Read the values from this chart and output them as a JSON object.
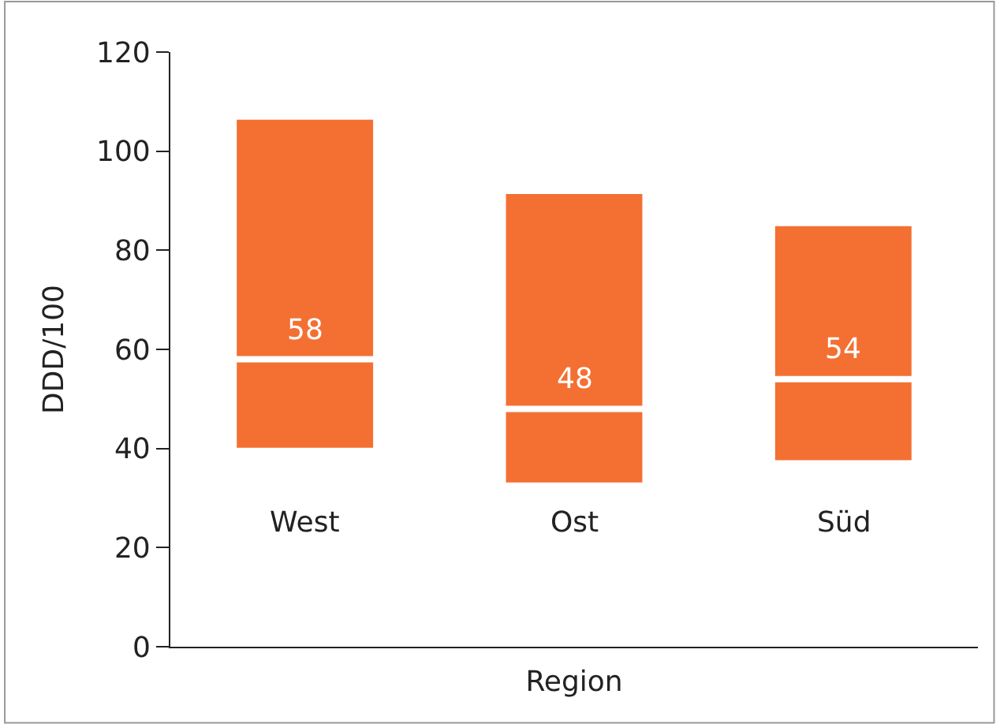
{
  "chart_data": {
    "type": "box",
    "xlabel": "Region",
    "ylabel": "DDD/100",
    "categories": [
      "West",
      "Ost",
      "Süd"
    ],
    "boxes": [
      {
        "low": 39.5,
        "q1": 39.5,
        "median": 58,
        "q3": 107,
        "high": 107
      },
      {
        "low": 32.5,
        "q1": 32.5,
        "median": 48,
        "q3": 92,
        "high": 92
      },
      {
        "low": 37,
        "q1": 37,
        "median": 54,
        "q3": 85.5,
        "high": 85.5
      }
    ],
    "color": "#f37032",
    "annotations": [
      {
        "text": "58",
        "x": "West",
        "y": 58
      },
      {
        "text": "48",
        "x": "Ost",
        "y": 48
      },
      {
        "text": "54",
        "x": "Süd",
        "y": 54
      }
    ],
    "ylim": [
      0,
      120
    ],
    "yticks": [
      0,
      20,
      40,
      60,
      80,
      100,
      120
    ]
  }
}
